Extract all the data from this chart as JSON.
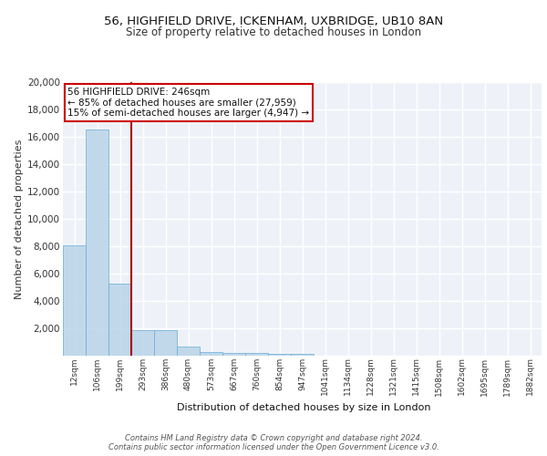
{
  "title1": "56, HIGHFIELD DRIVE, ICKENHAM, UXBRIDGE, UB10 8AN",
  "title2": "Size of property relative to detached houses in London",
  "xlabel": "Distribution of detached houses by size in London",
  "ylabel": "Number of detached properties",
  "categories": [
    "12sqm",
    "106sqm",
    "199sqm",
    "293sqm",
    "386sqm",
    "480sqm",
    "573sqm",
    "667sqm",
    "760sqm",
    "854sqm",
    "947sqm",
    "1041sqm",
    "1134sqm",
    "1228sqm",
    "1321sqm",
    "1415sqm",
    "1508sqm",
    "1602sqm",
    "1695sqm",
    "1789sqm",
    "1882sqm"
  ],
  "values": [
    8100,
    16500,
    5300,
    1850,
    1850,
    700,
    300,
    220,
    190,
    160,
    130,
    0,
    0,
    0,
    0,
    0,
    0,
    0,
    0,
    0,
    0
  ],
  "bar_color": "#b8d4e8",
  "bar_edge_color": "#6aaed6",
  "bar_alpha": 0.85,
  "vline_color": "#aa0000",
  "annotation_text": "56 HIGHFIELD DRIVE: 246sqm\n← 85% of detached houses are smaller (27,959)\n15% of semi-detached houses are larger (4,947) →",
  "annotation_box_color": "#ffffff",
  "annotation_box_edge": "#cc0000",
  "background_color": "#eef2f8",
  "grid_color": "#ffffff",
  "footer": "Contains HM Land Registry data © Crown copyright and database right 2024.\nContains public sector information licensed under the Open Government Licence v3.0.",
  "ylim": [
    0,
    20000
  ],
  "yticks": [
    0,
    2000,
    4000,
    6000,
    8000,
    10000,
    12000,
    14000,
    16000,
    18000,
    20000
  ]
}
